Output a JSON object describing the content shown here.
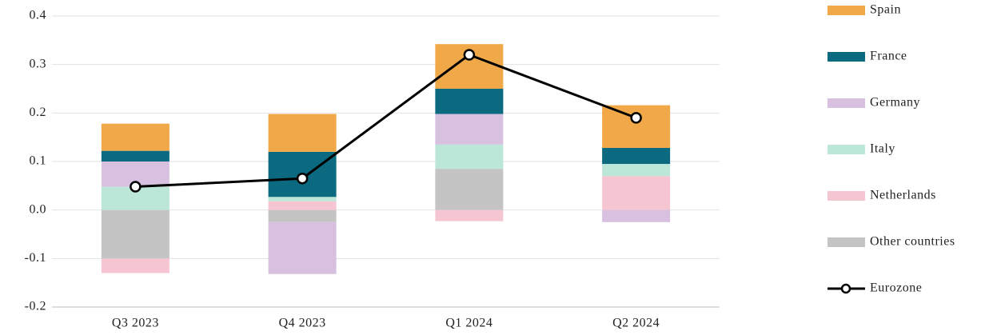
{
  "chart_data": {
    "type": "stacked-bar-line",
    "categories": [
      "Q3 2023",
      "Q4 2023",
      "Q1 2024",
      "Q2 2024"
    ],
    "series": [
      {
        "name": "Spain",
        "color": "#f0a848",
        "values": [
          0.056,
          0.078,
          0.092,
          0.088
        ]
      },
      {
        "name": "France",
        "color": "#0b6a80",
        "values": [
          0.022,
          0.093,
          0.052,
          0.033
        ]
      },
      {
        "name": "Germany",
        "color": "#d8c0e0",
        "values": [
          0.052,
          -0.107,
          0.063,
          -0.025
        ]
      },
      {
        "name": "Italy",
        "color": "#bce6d8",
        "values": [
          0.048,
          0.009,
          0.05,
          0.025
        ]
      },
      {
        "name": "Netherlands",
        "color": "#f5c6d2",
        "values": [
          -0.03,
          0.018,
          -0.023,
          0.07
        ]
      },
      {
        "name": "Other countries",
        "color": "#c4c4c4",
        "values": [
          -0.1,
          -0.025,
          0.085,
          0
        ]
      },
      {
        "name": "Eurozone",
        "color": "#000000",
        "type": "line",
        "values": [
          0.048,
          0.065,
          0.32,
          0.19
        ]
      }
    ],
    "ylim": [
      -0.2,
      0.4
    ],
    "yticks": [
      {
        "value": -0.2,
        "label": "-0.2"
      },
      {
        "value": -0.1,
        "label": "-0.1"
      },
      {
        "value": 0,
        "label": "0.0"
      },
      {
        "value": 0.1,
        "label": "0.1"
      },
      {
        "value": 0.2,
        "label": "0.2"
      },
      {
        "value": 0.3,
        "label": "0.3"
      },
      {
        "value": 0.4,
        "label": "0.4"
      }
    ],
    "grid": true,
    "legend": "right"
  }
}
